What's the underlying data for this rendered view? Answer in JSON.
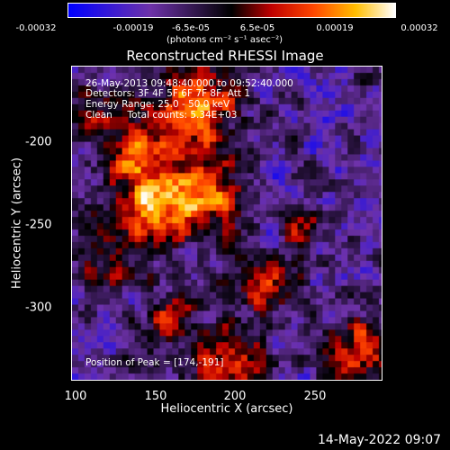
{
  "colorbar": {
    "ticks": [
      "-0.00032",
      "-0.00019",
      "-6.5e-05",
      "6.5e-05",
      "0.00019",
      "0.00032"
    ],
    "unit_label": "(photons cm⁻² s⁻¹ asec⁻²)",
    "range": [
      -0.00032,
      0.00032
    ]
  },
  "title": "Reconstructed RHESSI Image",
  "info": {
    "time": "26-May-2013 09:48:40.000 to 09:52:40.000",
    "detectors": "Detectors: 3F 4F 5F 6F 7F 8F, Att 1",
    "energy": "Energy Range: 25.0 - 50.0 keV",
    "clean": "Clean     Total counts: 5.34E+03",
    "peak": "Position of Peak = [174,-191]"
  },
  "chart_data": {
    "type": "heatmap",
    "title": "Reconstructed RHESSI Image",
    "xlabel": "Heliocentric X (arcsec)",
    "ylabel": "Heliocentric Y (arcsec)",
    "xlim": [
      98,
      286
    ],
    "ylim": [
      -347,
      -158
    ],
    "xticks": [
      "100",
      "150",
      "200",
      "250"
    ],
    "yticks": [
      "-200",
      "-250",
      "-300"
    ],
    "colorbar_range": [
      -0.00032,
      0.00032
    ],
    "peak": [
      174,
      -191
    ],
    "colors": {
      "negative": "#0000ff",
      "zero": "#000000",
      "positive": "#ffffff"
    }
  },
  "footer_timestamp": "14-May-2022 09:07"
}
